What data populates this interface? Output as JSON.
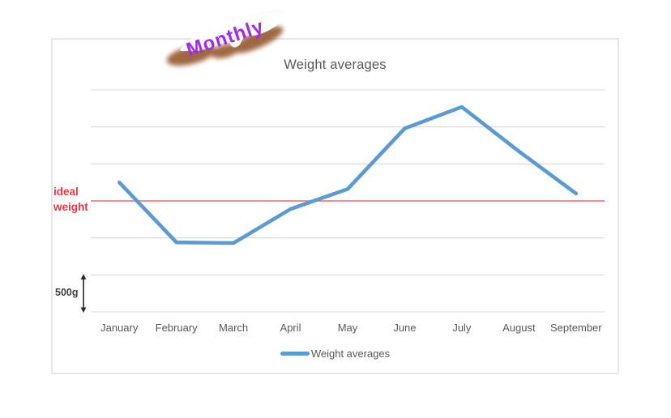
{
  "chart": {
    "title": "Weight averages",
    "sticker": {
      "label": "Monthly"
    },
    "reference_label": {
      "line1": "ideal",
      "line2": "weight"
    },
    "scale_label": "500g",
    "legend": {
      "items": [
        {
          "label": "Weight averages",
          "swatch": "blue-line"
        }
      ]
    },
    "colors": {
      "series_blue": "#5B9BD5",
      "ideal_line_red": "#F8797D",
      "ideal_text_red": "#F5333F",
      "gridline_gray": "#D9D9D9",
      "text_gray": "#595959",
      "scale_text_dark": "#3F3F3F",
      "arrow_dark": "#262626",
      "frame_border": "#E7E7E7",
      "sticker_purple": "#A428F0",
      "sticker_shadow_brown": "#96582F",
      "background": "#FFFFFF"
    }
  },
  "chart_data": {
    "type": "line",
    "title": "Weight averages",
    "categories": [
      "January",
      "February",
      "March",
      "April",
      "May",
      "June",
      "July",
      "August",
      "September"
    ],
    "series": [
      {
        "name": "Weight averages",
        "values": [
          250,
          -560,
          -570,
          -110,
          160,
          980,
          1270,
          670,
          100
        ]
      }
    ],
    "y_unit": "grams relative to ideal weight (no numeric axis labels shown)",
    "ylim": [
      -1500,
      1500
    ],
    "gridline_interval": 500,
    "grid": "horizontal",
    "xlabel": "",
    "ylabel": "",
    "reference_line": {
      "label": "ideal weight",
      "value": 0
    },
    "scale_annotation": {
      "label": "500g",
      "spans_from": -1500,
      "spans_to": -1000
    },
    "legend_position": "bottom-center",
    "sticker_annotation": "Monthly"
  }
}
